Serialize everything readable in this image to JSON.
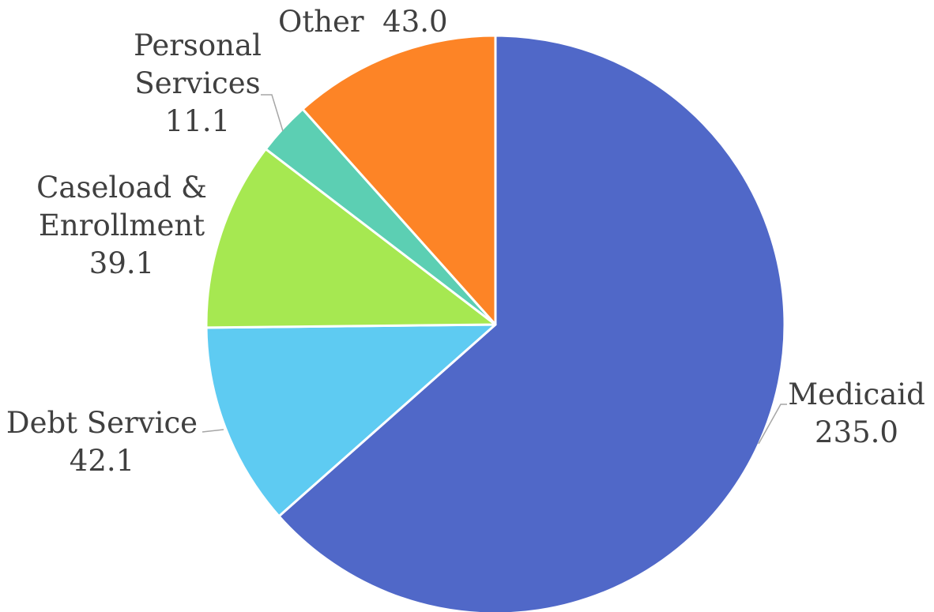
{
  "chart_data": {
    "type": "pie",
    "title": "",
    "slices": [
      {
        "name": "Medicaid",
        "label_lines": [
          "Medicaid"
        ],
        "value": 235.0,
        "value_label": "235.0",
        "color": "#5068C8"
      },
      {
        "name": "Debt Service",
        "label_lines": [
          "Debt Service"
        ],
        "value": 42.1,
        "value_label": "42.1",
        "color": "#5ECBF2"
      },
      {
        "name": "Caseload & Enrollment",
        "label_lines": [
          "Caseload &",
          "Enrollment"
        ],
        "value": 39.1,
        "value_label": "39.1",
        "color": "#A6E851"
      },
      {
        "name": "Personal Services",
        "label_lines": [
          "Personal",
          "Services"
        ],
        "value": 11.1,
        "value_label": "11.1",
        "color": "#5CCFB3"
      },
      {
        "name": "Other",
        "label_lines": [
          "Other"
        ],
        "value": 43.0,
        "value_label": "43.0",
        "color": "#FD8426"
      }
    ]
  }
}
